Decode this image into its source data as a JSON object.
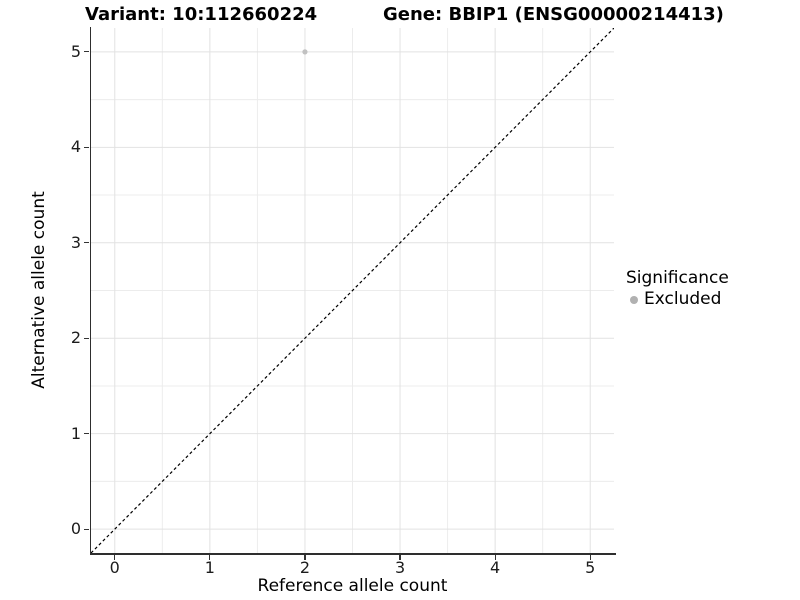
{
  "chart_data": {
    "type": "scatter",
    "title_left": "Variant: 10:112660224",
    "title_right": "Gene: BBIP1 (ENSG00000214413)",
    "xlabel": "Reference allele count",
    "ylabel": "Alternative allele count",
    "xlim": [
      -0.25,
      5.25
    ],
    "ylim": [
      -0.25,
      5.25
    ],
    "xticks": [
      0,
      1,
      2,
      3,
      4,
      5
    ],
    "yticks": [
      0,
      1,
      2,
      3,
      4,
      5
    ],
    "x_minor_gridlines": [
      0.5,
      1.5,
      2.5,
      3.5,
      4.5
    ],
    "y_minor_gridlines": [
      0.5,
      1.5,
      2.5,
      3.5,
      4.5
    ],
    "grid": "major+minor",
    "series": [
      {
        "name": "Excluded",
        "marker": "circle",
        "radius": 2.6,
        "color": "#c1c1c1",
        "points": [
          {
            "x": 2,
            "y": 5
          }
        ]
      }
    ],
    "reference_line": {
      "kind": "identity",
      "style": "dashed",
      "color": "#000000",
      "from": [
        -0.25,
        -0.25
      ],
      "to": [
        5.25,
        5.25
      ]
    },
    "legend": {
      "title": "Significance",
      "position": "right",
      "entries": [
        {
          "label": "Excluded",
          "color": "#b1b1b1"
        }
      ]
    },
    "colors": {
      "panel_background": "#ffffff",
      "grid_major": "#e2e2e2",
      "grid_minor": "#ececec",
      "axis_line": "#2e2e2e",
      "tick_mark": "#333333",
      "tick_label": "#1c1c1c",
      "title_text": "#000000"
    }
  }
}
